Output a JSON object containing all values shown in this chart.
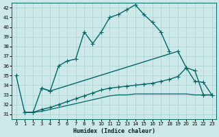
{
  "xlabel": "Humidex (Indice chaleur)",
  "xlim": [
    -0.5,
    23.5
  ],
  "ylim": [
    30.5,
    42.5
  ],
  "yticks": [
    31,
    32,
    33,
    34,
    35,
    36,
    37,
    38,
    39,
    40,
    41,
    42
  ],
  "xticks": [
    0,
    1,
    2,
    3,
    4,
    5,
    6,
    7,
    8,
    9,
    10,
    11,
    12,
    13,
    14,
    15,
    16,
    17,
    18,
    19,
    20,
    21,
    22,
    23
  ],
  "background_color": "#cce8e8",
  "grid_color": "#a8d0d0",
  "line_color": "#006666",
  "series": [
    {
      "x": [
        0,
        1,
        2,
        3,
        4,
        5,
        6,
        7,
        8,
        9,
        10,
        11,
        12,
        13,
        14,
        15,
        16,
        17,
        18
      ],
      "y": [
        35,
        31.2,
        31.2,
        33.7,
        33.4,
        36.0,
        36.5,
        36.7,
        39.5,
        38.3,
        39.5,
        41.0,
        41.3,
        41.8,
        42.3,
        41.3,
        40.5,
        39.5,
        37.5
      ],
      "marker": "+",
      "markersize": 5,
      "linewidth": 1.0
    },
    {
      "x": [
        3,
        4,
        19,
        20,
        21,
        22,
        23
      ],
      "y": [
        33.7,
        33.4,
        37.5,
        35.8,
        34.4,
        34.3,
        33.0
      ],
      "marker": "+",
      "markersize": 5,
      "linewidth": 1.0
    },
    {
      "x": [
        1,
        2,
        3,
        4,
        5,
        6,
        7,
        8,
        9,
        10,
        11,
        12,
        13,
        14,
        15,
        16,
        17,
        18,
        19,
        20,
        21,
        22,
        23
      ],
      "y": [
        31.2,
        31.2,
        31.5,
        31.7,
        32.0,
        32.3,
        32.6,
        32.9,
        33.2,
        33.5,
        33.7,
        33.8,
        33.9,
        34.0,
        34.1,
        34.2,
        34.4,
        34.6,
        34.9,
        35.8,
        35.5,
        33.0,
        33.0
      ],
      "marker": "+",
      "markersize": 5,
      "linewidth": 1.0
    },
    {
      "x": [
        1,
        2,
        3,
        4,
        5,
        6,
        7,
        8,
        9,
        10,
        11,
        12,
        13,
        14,
        15,
        16,
        17,
        18,
        19,
        20,
        21,
        22,
        23
      ],
      "y": [
        31.2,
        31.2,
        31.3,
        31.5,
        31.7,
        31.9,
        32.1,
        32.3,
        32.5,
        32.7,
        32.9,
        33.0,
        33.0,
        33.1,
        33.1,
        33.1,
        33.1,
        33.1,
        33.1,
        33.1,
        33.0,
        33.0,
        33.0
      ],
      "marker": null,
      "markersize": 0,
      "linewidth": 0.9
    }
  ]
}
